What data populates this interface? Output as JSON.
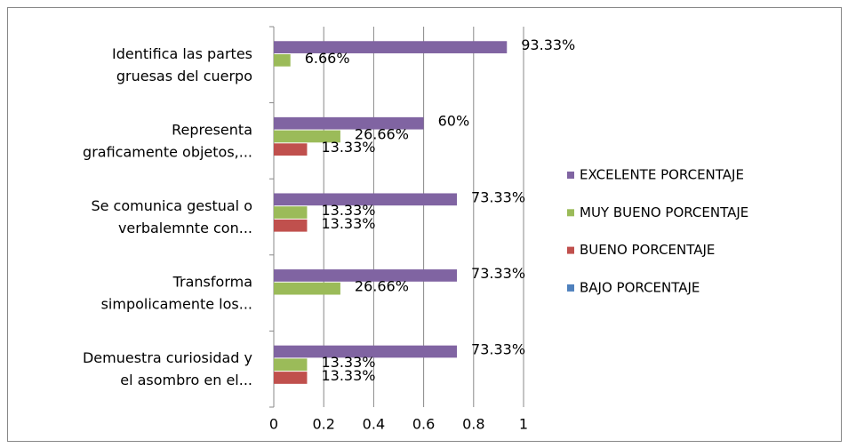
{
  "chart_data": {
    "type": "bar",
    "orientation": "horizontal",
    "categories": [
      [
        "Identifica las partes",
        "gruesas del cuerpo"
      ],
      [
        "Representa",
        "graficamente objetos,..."
      ],
      [
        "Se comunica gestual o",
        "verbalemnte con..."
      ],
      [
        "Transforma",
        "simpolicamente los..."
      ],
      [
        "Demuestra curiosidad y",
        "el asombro en el..."
      ]
    ],
    "series": [
      {
        "name": "EXCELENTE PORCENTAJE",
        "color": "#8064a2",
        "values": [
          0.9333,
          0.6,
          0.7333,
          0.7333,
          0.7333
        ],
        "value_labels": [
          "93.33%",
          "60%",
          "73.33%",
          "73.33%",
          "73.33%"
        ]
      },
      {
        "name": "MUY BUENO PORCENTAJE",
        "color": "#9bbb59",
        "values": [
          0.0666,
          0.2666,
          0.1333,
          0.2666,
          0.1333
        ],
        "value_labels": [
          "6.66%",
          "26.66%",
          "13.33%",
          "26.66%",
          "13.33%"
        ]
      },
      {
        "name": "BUENO PORCENTAJE",
        "color": "#c0504d",
        "values": [
          null,
          0.1333,
          0.1333,
          null,
          0.1333
        ],
        "value_labels": [
          null,
          "13.33%",
          "13.33%",
          null,
          "13.33%"
        ]
      },
      {
        "name": "BAJO PORCENTAJE",
        "color": "#4f81bd",
        "values": [
          null,
          null,
          null,
          null,
          null
        ]
      }
    ],
    "xlim": [
      0,
      1
    ],
    "xticks": [
      0,
      0.2,
      0.4,
      0.6,
      0.8,
      1
    ],
    "grid": true,
    "legend": "right"
  }
}
